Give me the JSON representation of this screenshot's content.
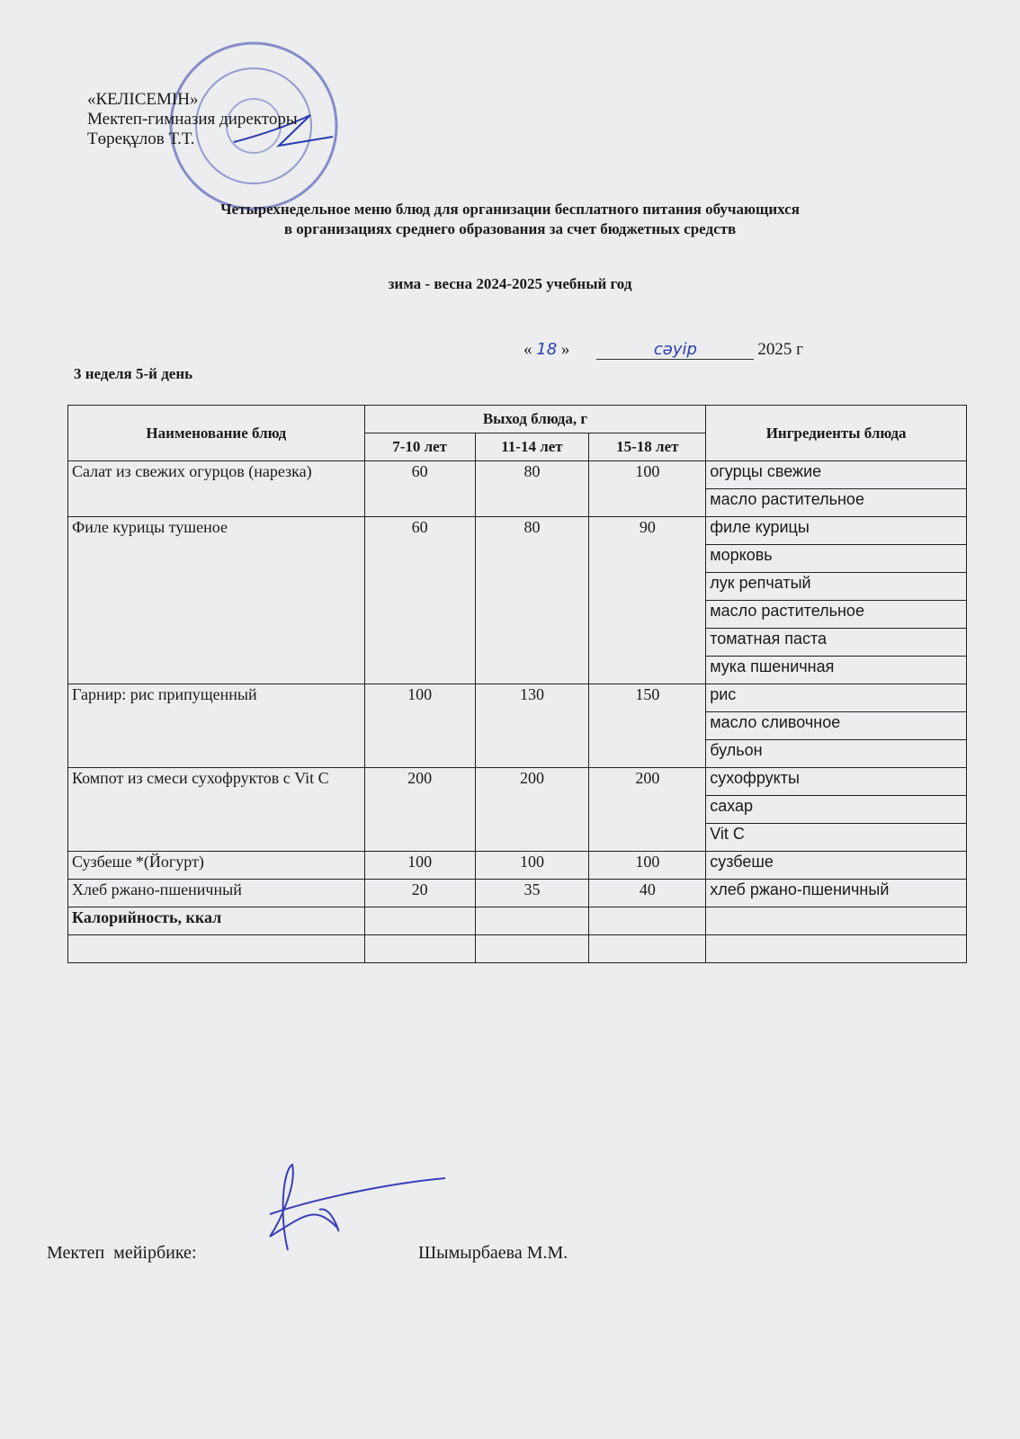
{
  "approval": {
    "lines": [
      "«КЕЛІСЕМІН»",
      "Мектеп-гимназия директоры",
      "Төреқұлов Т.Т."
    ]
  },
  "header": {
    "title_lines": [
      "Четырехнедельное меню блюд для организации бесплатного питания обучающихся",
      "в организациях среднего образования за счет бюджетных средств"
    ],
    "subtitle": "зима - весна 2024-2025 учебный год"
  },
  "date": {
    "open_quote": "«",
    "day": "18",
    "close_quote": "»",
    "month": "сәуір",
    "year": "2025 г"
  },
  "week_day": "3 неделя 5-й день",
  "table": {
    "headers": {
      "name": "Наименование блюд",
      "yield": "Выход блюда, г",
      "ages": [
        "7-10 лет",
        "11-14 лет",
        "15-18 лет"
      ],
      "ingredients": "Ингредиенты блюда"
    },
    "rows": [
      {
        "name": "Салат из свежих огурцов (нарезка)",
        "yields": [
          60,
          80,
          100
        ],
        "ingredients": [
          "огурцы свежие",
          "масло растительное"
        ]
      },
      {
        "name": "Филе курицы тушеное",
        "yields": [
          60,
          80,
          90
        ],
        "ingredients": [
          "филе курицы",
          "морковь",
          "лук репчатый",
          "масло растительное",
          "томатная паста",
          "мука пшеничная"
        ]
      },
      {
        "name": "Гарнир: рис припущенный",
        "yields": [
          100,
          130,
          150
        ],
        "ingredients": [
          "рис",
          "масло сливочное",
          "бульон"
        ]
      },
      {
        "name": "Компот из смеси сухофруктов с Vit C",
        "yields": [
          200,
          200,
          200
        ],
        "ingredients": [
          "сухофрукты",
          "сахар",
          "Vit C"
        ]
      },
      {
        "name": "Сузбеше *(Йогурт)",
        "yields": [
          100,
          100,
          100
        ],
        "ingredients": [
          "сузбеше"
        ]
      },
      {
        "name": "Хлеб ржано-пшеничный",
        "yields": [
          20,
          35,
          40
        ],
        "ingredients": [
          "хлеб ржано-пшеничный"
        ]
      }
    ],
    "calorie_label": "Калорийность, ккал"
  },
  "footer": {
    "role": "Мектеп  мейірбике:",
    "name": "Шымырбаева М.М."
  }
}
